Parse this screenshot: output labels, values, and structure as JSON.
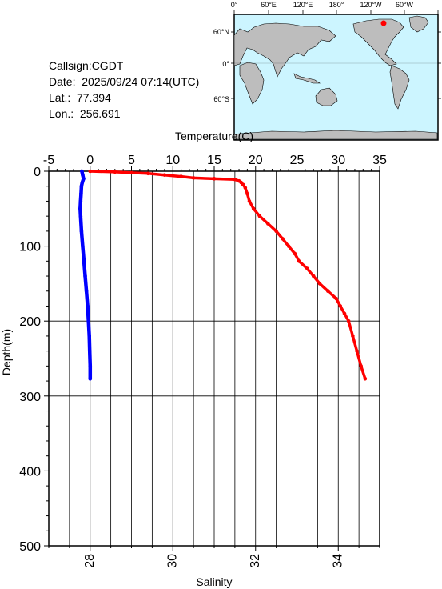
{
  "header": {
    "callsign": "Callsign:CGDT",
    "date": "Date:  2025/09/24 07:14(UTC)",
    "lat": "Lat.:  77.394",
    "lon": "Lon.:  256.691"
  },
  "map": {
    "lon_labels": [
      "0°",
      "60°E",
      "120°E",
      "180°",
      "120°W",
      "60°W"
    ],
    "lat_labels": [
      "60°N",
      "0°",
      "60°S"
    ],
    "ocean_color": "#ccf5ff",
    "land_color": "#bdbdbd",
    "marker_color": "#ff0000"
  },
  "chart_data": {
    "type": "line",
    "ylabel": "Depth(m)",
    "ylim": [
      0,
      500
    ],
    "y_ticks": [
      "0",
      "100",
      "200",
      "300",
      "400",
      "500"
    ],
    "x_top_label": "Temperature(C)",
    "x_top_lim": [
      -5,
      35
    ],
    "x_top_ticks": [
      "-5",
      "0",
      "5",
      "10",
      "15",
      "20",
      "25",
      "30",
      "35"
    ],
    "x_bottom_label": "Salinity",
    "x_bottom_lim": [
      27,
      35
    ],
    "x_bottom_ticks": [
      "28",
      "30",
      "32",
      "34"
    ],
    "grid": true,
    "series": [
      {
        "axis": "temperature",
        "color": "#0000ff",
        "points": [
          [
            -1.0,
            0
          ],
          [
            -0.9,
            5
          ],
          [
            -0.8,
            10
          ],
          [
            -0.95,
            15
          ],
          [
            -1.05,
            20
          ],
          [
            -1.1,
            30
          ],
          [
            -1.15,
            40
          ],
          [
            -1.2,
            50
          ],
          [
            -1.15,
            60
          ],
          [
            -1.05,
            80
          ],
          [
            -0.9,
            100
          ],
          [
            -0.75,
            120
          ],
          [
            -0.6,
            140
          ],
          [
            -0.45,
            160
          ],
          [
            -0.3,
            180
          ],
          [
            -0.2,
            200
          ],
          [
            -0.1,
            220
          ],
          [
            -0.05,
            240
          ],
          [
            0.0,
            260
          ],
          [
            0.0,
            277
          ]
        ]
      },
      {
        "axis": "salinity",
        "color": "#ff0000",
        "points": [
          [
            28.0,
            0
          ],
          [
            28.6,
            1
          ],
          [
            29.0,
            2
          ],
          [
            29.4,
            3
          ],
          [
            29.8,
            5
          ],
          [
            30.2,
            7
          ],
          [
            30.5,
            9
          ],
          [
            31.0,
            10
          ],
          [
            31.5,
            11
          ],
          [
            31.6,
            13
          ],
          [
            31.65,
            15
          ],
          [
            31.7,
            18
          ],
          [
            31.75,
            22
          ],
          [
            31.8,
            30
          ],
          [
            31.85,
            40
          ],
          [
            31.95,
            50
          ],
          [
            32.1,
            60
          ],
          [
            32.3,
            70
          ],
          [
            32.5,
            80
          ],
          [
            32.65,
            90
          ],
          [
            32.8,
            100
          ],
          [
            32.95,
            110
          ],
          [
            33.05,
            120
          ],
          [
            33.25,
            130
          ],
          [
            33.4,
            140
          ],
          [
            33.55,
            150
          ],
          [
            33.75,
            160
          ],
          [
            33.95,
            170
          ],
          [
            34.05,
            180
          ],
          [
            34.15,
            190
          ],
          [
            34.25,
            200
          ],
          [
            34.35,
            220
          ],
          [
            34.45,
            240
          ],
          [
            34.55,
            260
          ],
          [
            34.65,
            277
          ]
        ]
      }
    ]
  }
}
